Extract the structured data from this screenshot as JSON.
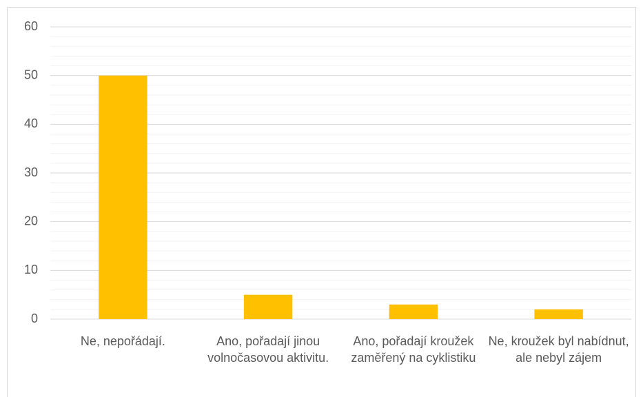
{
  "chart_data": {
    "type": "bar",
    "categories": [
      "Ne, nepořádají.",
      "Ano, pořadají jinou volnočasovou aktivitu.",
      "Ano, pořadají kroužek zaměřený na cyklistiku",
      "Ne, kroužek byl nabídnut, ale nebyl zájem"
    ],
    "values": [
      50,
      5,
      3,
      2
    ],
    "color": "#ffc000",
    "ylim": [
      0,
      60
    ],
    "yticks": [
      0,
      10,
      20,
      30,
      40,
      50,
      60
    ],
    "grid": true,
    "minor_grid_step": 2
  }
}
